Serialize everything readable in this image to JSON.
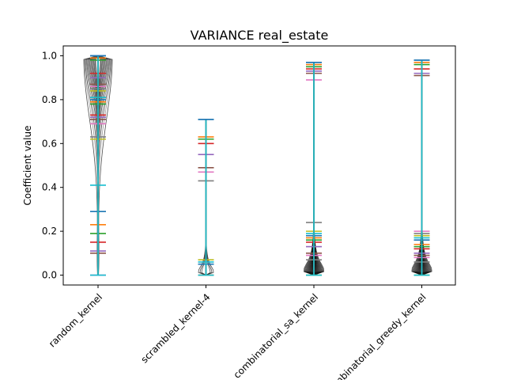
{
  "chart_data": {
    "type": "violin",
    "title": "VARIANCE real_estate",
    "xlabel": "",
    "ylabel": "Coefficient value",
    "ylim": [
      -0.045,
      1.045
    ],
    "yticks": [
      0.0,
      0.2,
      0.4,
      0.6,
      0.8,
      1.0
    ],
    "ytick_labels": [
      "0.0",
      "0.2",
      "0.4",
      "0.6",
      "0.8",
      "1.0"
    ],
    "categories": [
      "random_kernel",
      "scrambled_kernel-4",
      "combinatorial_sa_kernel",
      "combinatorial_greedy_kernel"
    ],
    "grid": false,
    "colors": [
      "#1f77b4",
      "#ff7f0e",
      "#2ca02c",
      "#d62728",
      "#9467bd",
      "#8c564b",
      "#e377c2",
      "#7f7f7f",
      "#bcbd22",
      "#17becf"
    ],
    "groups": [
      {
        "category": "random_kernel",
        "min": 0.0,
        "max": 1.0,
        "levels": [
          1.0,
          0.99,
          0.98,
          0.92,
          0.9,
          0.87,
          0.86,
          0.85,
          0.84,
          0.81,
          0.8,
          0.79,
          0.78,
          0.73,
          0.72,
          0.71,
          0.69,
          0.63,
          0.62,
          0.41,
          0.29,
          0.23,
          0.19,
          0.15,
          0.11,
          0.1,
          0.0
        ]
      },
      {
        "category": "scrambled_kernel-4",
        "min": 0.0,
        "max": 0.71,
        "levels": [
          0.71,
          0.63,
          0.62,
          0.6,
          0.55,
          0.49,
          0.47,
          0.43,
          0.07,
          0.06,
          0.05,
          0.0
        ]
      },
      {
        "category": "combinatorial_sa_kernel",
        "min": 0.0,
        "max": 0.97,
        "levels": [
          0.97,
          0.96,
          0.95,
          0.94,
          0.93,
          0.92,
          0.89,
          0.24,
          0.2,
          0.19,
          0.18,
          0.17,
          0.16,
          0.15,
          0.13,
          0.1,
          0.09,
          0.07,
          0.0
        ]
      },
      {
        "category": "combinatorial_greedy_kernel",
        "min": 0.0,
        "max": 0.98,
        "levels": [
          0.98,
          0.97,
          0.96,
          0.94,
          0.92,
          0.91,
          0.2,
          0.19,
          0.18,
          0.17,
          0.16,
          0.14,
          0.13,
          0.12,
          0.1,
          0.09,
          0.08,
          0.06,
          0.0
        ]
      }
    ]
  }
}
